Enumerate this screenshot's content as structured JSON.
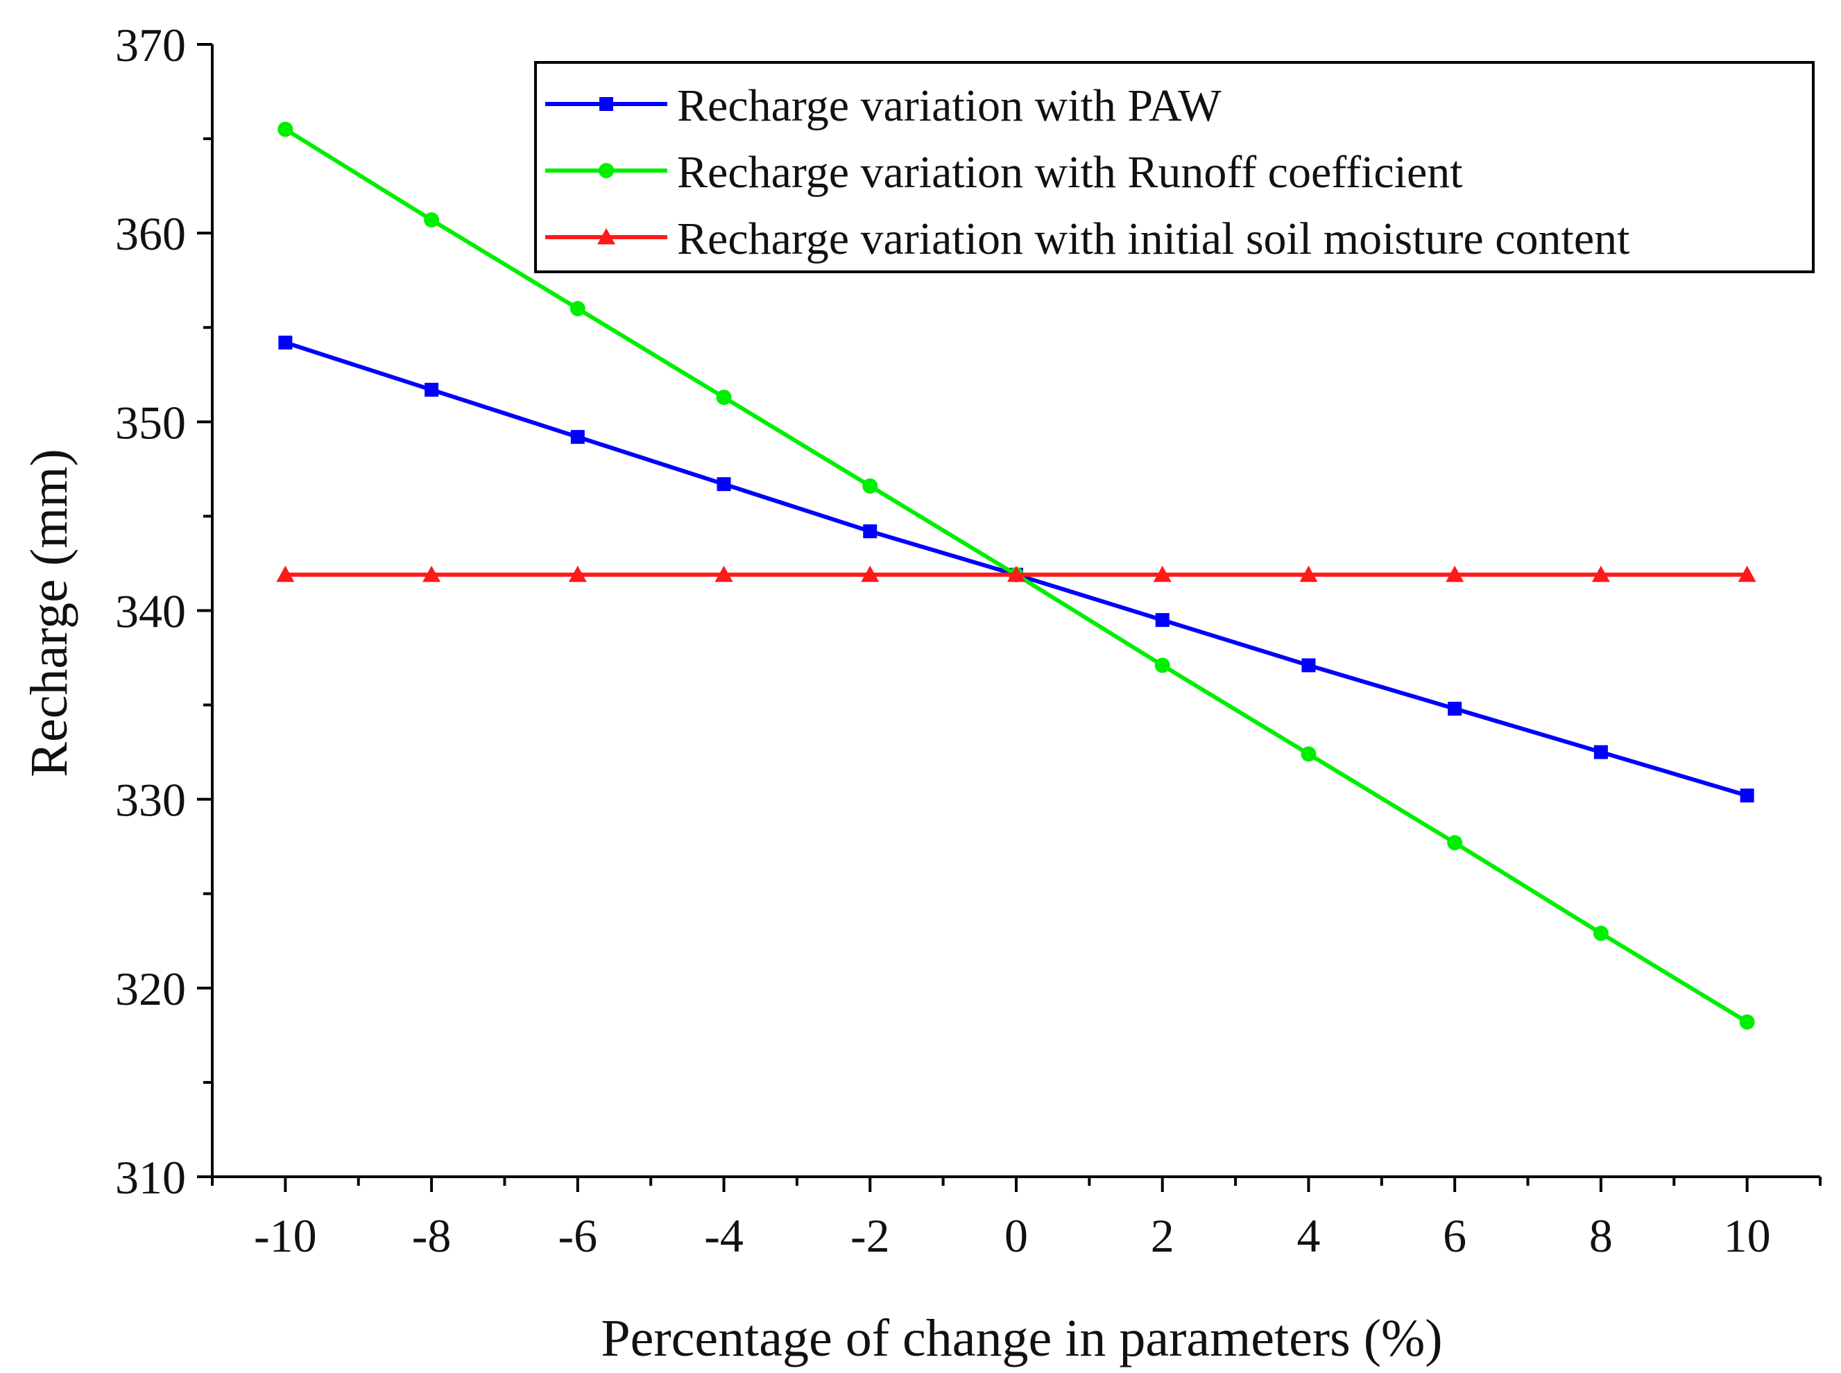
{
  "chart_data": {
    "type": "line",
    "title": "",
    "xlabel": "Percentage of change in parameters (%)",
    "ylabel": "Recharge (mm)",
    "x": [
      -10,
      -8,
      -6,
      -4,
      -2,
      0,
      2,
      4,
      6,
      8,
      10
    ],
    "xlim": [
      -11,
      11
    ],
    "ylim": [
      310,
      370
    ],
    "xticks": [
      -10,
      -8,
      -6,
      -4,
      -2,
      0,
      2,
      4,
      6,
      8,
      10
    ],
    "xtick_labels": [
      "-10",
      "-8",
      "-6",
      "-4",
      "-2",
      "0",
      "2",
      "4",
      "6",
      "8",
      "10"
    ],
    "yticks": [
      310,
      320,
      330,
      340,
      350,
      360,
      370
    ],
    "ytick_labels": [
      "310",
      "320",
      "330",
      "340",
      "350",
      "360",
      "370"
    ],
    "grid": false,
    "legend_position": "top-right",
    "series": [
      {
        "name": "Recharge variation with PAW",
        "color": "#0000ff",
        "marker": "square",
        "values": [
          354.2,
          351.7,
          349.2,
          346.7,
          344.2,
          341.9,
          339.5,
          337.1,
          334.8,
          332.5,
          330.2
        ]
      },
      {
        "name": "Recharge variation with Runoff coefficient",
        "color": "#00ee00",
        "marker": "circle",
        "values": [
          365.5,
          360.7,
          356.0,
          351.3,
          346.6,
          341.9,
          337.1,
          332.4,
          327.7,
          322.9,
          318.2
        ]
      },
      {
        "name": "Recharge variation with initial soil moisture content",
        "color": "#ff1a1a",
        "marker": "triangle",
        "values": [
          341.9,
          341.9,
          341.9,
          341.9,
          341.9,
          341.9,
          341.9,
          341.9,
          341.9,
          341.9,
          341.9
        ]
      }
    ]
  }
}
